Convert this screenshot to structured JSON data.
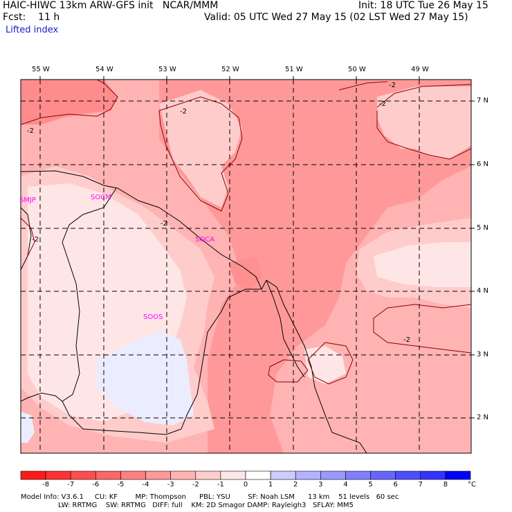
{
  "header": {
    "model": "HAIC-HIWC 13km ARW-GFS init   NCAR/MMM",
    "init": "Init: 18 UTC Tue 26 May 15",
    "forecast": "Fcst:    11 h",
    "valid": "Valid: 05 UTC Wed 27 May 15 (02 LST Wed 27 May 15)",
    "field": "Lifted index"
  },
  "lon_labels": [
    "55 W",
    "54 W",
    "53 W",
    "52 W",
    "51 W",
    "50 W",
    "49 W"
  ],
  "lat_labels": [
    "7 N",
    "6 N",
    "5 N",
    "4 N",
    "3 N",
    "2 N"
  ],
  "stations": [
    "SMJP",
    "SOCM",
    "SOCA",
    "SOOS"
  ],
  "contour_label": "-2",
  "colorbar": {
    "labels": [
      "-8",
      "-7",
      "-6",
      "-5",
      "-4",
      "-3",
      "-2",
      "-1",
      "0",
      "1",
      "2",
      "3",
      "4",
      "5",
      "6",
      "7",
      "8"
    ],
    "unit": "°C",
    "colors": [
      "#ff1a1a",
      "#ff3333",
      "#ff4d4d",
      "#ff6666",
      "#ff8080",
      "#ff9999",
      "#ffb3b3",
      "#ffcccc",
      "#ffe6e6",
      "#ffffff",
      "#ccccff",
      "#b3b3ff",
      "#9999ff",
      "#8080ff",
      "#6666ff",
      "#4d4dff",
      "#3333ff",
      "#0000ff"
    ]
  },
  "footer": {
    "line1": "Model Info: V3.6.1     CU: KF        MP: Thompson      PBL: YSU        SF: Noah LSM      13 km    51 levels   60 sec",
    "line2": "                 LW: RRTMG    SW: RRTMG   DIFF: full    KM: 2D Smagor DAMP: Rayleigh3   SFLAY: MM5"
  }
}
